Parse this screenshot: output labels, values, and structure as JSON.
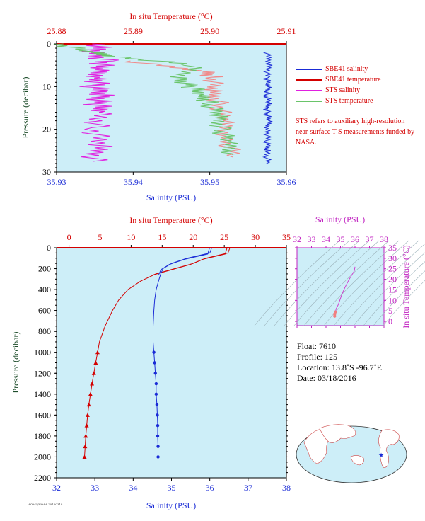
{
  "chart_data": [
    {
      "type": "line",
      "top_axis_label": "In situ Temperature (°C)",
      "top_ticks": [
        "25.88",
        "25.89",
        "25.90",
        "25.91"
      ],
      "xlim_temp": [
        25.88,
        25.91
      ],
      "bottom_axis_label": "Salinity (PSU)",
      "bottom_ticks": [
        "35.93",
        "35.94",
        "35.95",
        "35.96"
      ],
      "xlim_sal": [
        35.93,
        35.96
      ],
      "ylabel": "Pressure (decibar)",
      "y_ticks": [
        "0",
        "10",
        "20",
        "30"
      ],
      "ylim": [
        0,
        30
      ],
      "series": [
        {
          "name": "SBE41 salinity",
          "color": "#1a2bd6",
          "x": [
            35.9575,
            35.9578,
            35.9574,
            35.9577,
            35.9575,
            35.9576,
            35.9574,
            35.9577,
            35.9576,
            35.9575,
            35.9576,
            35.9574
          ],
          "y": [
            2,
            5,
            8,
            10,
            12,
            14,
            16,
            18,
            20,
            23,
            25,
            28
          ]
        },
        {
          "name": "SBE41 temperature",
          "color": "#d40000",
          "x": [
            25.8893,
            25.8995,
            25.9005,
            25.9003,
            25.9012,
            25.9018,
            25.9022,
            25.903
          ],
          "y": [
            4,
            6.5,
            8,
            11,
            14,
            18,
            22,
            26.5
          ]
        },
        {
          "name": "STS salinity",
          "color": "#e020e0",
          "x": [
            35.936,
            35.9345,
            35.9365,
            35.935,
            35.9358,
            35.9348,
            35.9362,
            35.9352,
            35.936,
            35.935,
            35.9355,
            35.9348
          ],
          "y": [
            0,
            2,
            4,
            6,
            8,
            10,
            12,
            14,
            16,
            20,
            24,
            27.5
          ]
        },
        {
          "name": "STS temperature",
          "color": "#6ac46a",
          "x": [
            25.8802,
            25.8845,
            25.888,
            25.898,
            25.896,
            25.8975,
            25.899,
            25.9,
            25.901,
            25.9015,
            25.9022,
            25.903
          ],
          "y": [
            0,
            2,
            3,
            5,
            8,
            10,
            12,
            14,
            17,
            20,
            23,
            26
          ]
        }
      ],
      "legend": [
        "SBE41 salinity",
        "SBE41 temperature",
        "STS salinity",
        "STS temperature"
      ],
      "note": "STS refers to auxiliary high-resolution near-surface T-S measurements funded by NASA."
    },
    {
      "type": "line",
      "top_axis_label": "In situ Temperature (°C)",
      "top_ticks": [
        "0",
        "5",
        "10",
        "15",
        "20",
        "25",
        "30",
        "35"
      ],
      "xlim_temp": [
        -2,
        35
      ],
      "bottom_axis_label": "Salinity (PSU)",
      "bottom_ticks": [
        "32",
        "33",
        "34",
        "35",
        "36",
        "37",
        "38"
      ],
      "xlim_sal": [
        32,
        38
      ],
      "ylabel": "Pressure (decibar)",
      "y_ticks": [
        "0",
        "200",
        "400",
        "600",
        "800",
        "1000",
        "1200",
        "1400",
        "1600",
        "1800",
        "2000",
        "2200"
      ],
      "ylim": [
        0,
        2200
      ],
      "series": [
        {
          "name": "Temperature",
          "color": "#d40000",
          "x": [
            25.9,
            25.6,
            22,
            20,
            17,
            14,
            11.5,
            9.5,
            8,
            7,
            5.8,
            4.9,
            4.6,
            4.3,
            4.0,
            3.7,
            3.45,
            3.2,
            3.0,
            2.85,
            2.7,
            2.6,
            2.5
          ],
          "y": [
            0,
            50,
            100,
            150,
            200,
            250,
            320,
            400,
            500,
            600,
            750,
            900,
            1000,
            1100,
            1200,
            1300,
            1400,
            1500,
            1600,
            1700,
            1800,
            1900,
            2000
          ]
        },
        {
          "name": "Salinity",
          "color": "#1a2bd6",
          "x": [
            36.05,
            36.0,
            35.4,
            35.0,
            34.78,
            34.72,
            34.66,
            34.6,
            34.56,
            34.54,
            34.52,
            34.52,
            34.54,
            34.56,
            34.58,
            34.6,
            34.6,
            34.62,
            34.63,
            34.64,
            34.64,
            34.65,
            34.65
          ],
          "y": [
            0,
            50,
            100,
            150,
            200,
            250,
            320,
            400,
            500,
            600,
            750,
            900,
            1000,
            1100,
            1200,
            1300,
            1400,
            1500,
            1600,
            1700,
            1800,
            1900,
            2000
          ]
        }
      ]
    },
    {
      "type": "scatter",
      "top_axis_label": "Salinity (PSU)",
      "top_ticks": [
        "32",
        "33",
        "34",
        "35",
        "36",
        "37",
        "38"
      ],
      "right_axis_label": "In situ Temperature (°C)",
      "right_ticks": [
        "0",
        "5",
        "10",
        "15",
        "20",
        "25",
        "30",
        "35"
      ],
      "x": [
        34.6,
        34.6,
        34.65,
        34.7,
        34.85,
        34.95,
        35.1,
        35.3,
        35.6,
        35.95,
        36.0
      ],
      "y": [
        2.5,
        3.5,
        4.5,
        6,
        8,
        10,
        13,
        16,
        20,
        24,
        26
      ]
    }
  ],
  "float_info": {
    "float": "Float:  7610",
    "profile": "Profile:  125",
    "location": "Location:  13.8˚S  -96.7˚E",
    "date": "Date:  03/18/2016"
  },
  "footer_text": "AOML/NOAA 20160318",
  "colors": {
    "plot_bg": "#cdeef8",
    "temp": "#d40000",
    "sal": "#1a2bd6",
    "sts_sal": "#e020e0",
    "sts_temp": "#6ac46a",
    "axis_magenta": "#c020c0",
    "ylabel": "#1e4d2b"
  }
}
